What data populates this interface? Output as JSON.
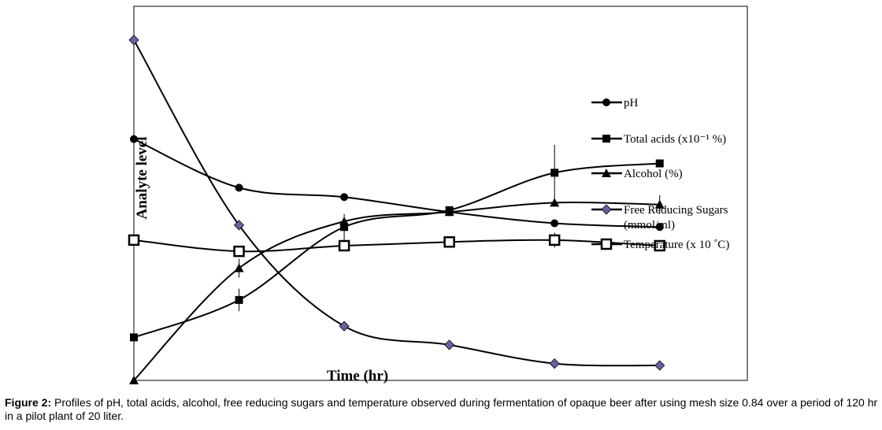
{
  "chart_data": {
    "type": "line",
    "title": "",
    "xlabel": "Time (hr)",
    "ylabel": "Analyte level",
    "x": [
      0,
      24,
      48,
      72,
      96,
      120
    ],
    "xlim": [
      0,
      140
    ],
    "ylim": [
      0,
      10
    ],
    "grid": false,
    "legend_position": "right",
    "series": [
      {
        "name": "pH",
        "marker": "circle",
        "values": [
          6.45,
          5.15,
          4.9,
          4.5,
          4.2,
          4.1
        ],
        "errors": [
          0,
          0,
          0,
          0,
          0,
          0
        ]
      },
      {
        "name": "Total acids (x10⁻¹ %)",
        "marker": "square",
        "values": [
          1.15,
          2.15,
          4.1,
          4.55,
          5.55,
          5.8
        ],
        "errors": [
          0,
          0.3,
          0.35,
          0,
          0.75,
          0
        ]
      },
      {
        "name": "Alcohol (%)",
        "marker": "triangle",
        "values": [
          0,
          3.0,
          4.25,
          4.5,
          4.75,
          4.7
        ],
        "errors": [
          0,
          0.25,
          0,
          0,
          0,
          0.25
        ]
      },
      {
        "name": "Free Reducing Sugars (mmol/ml)",
        "marker": "diamond",
        "values": [
          9.1,
          4.15,
          1.45,
          0.95,
          0.45,
          0.4
        ],
        "errors": [
          0,
          0,
          0,
          0,
          0,
          0
        ]
      },
      {
        "name": "Temperature (x 10 ˚C)",
        "marker": "open-square",
        "values": [
          3.75,
          3.45,
          3.6,
          3.7,
          3.75,
          3.6
        ],
        "errors": [
          0,
          0,
          0,
          0,
          0.2,
          0
        ]
      }
    ]
  },
  "caption": {
    "label": "Figure 2:",
    "text": " Profiles of pH, total acids, alcohol, free reducing sugars and temperature observed during fermentation of opaque beer after using mesh size 0.84 over a period of 120 hr in a pilot plant of 20 liter."
  },
  "colors": {
    "line": "#000000",
    "diamond_fill": "#6b5fa0",
    "background": "#ffffff"
  }
}
